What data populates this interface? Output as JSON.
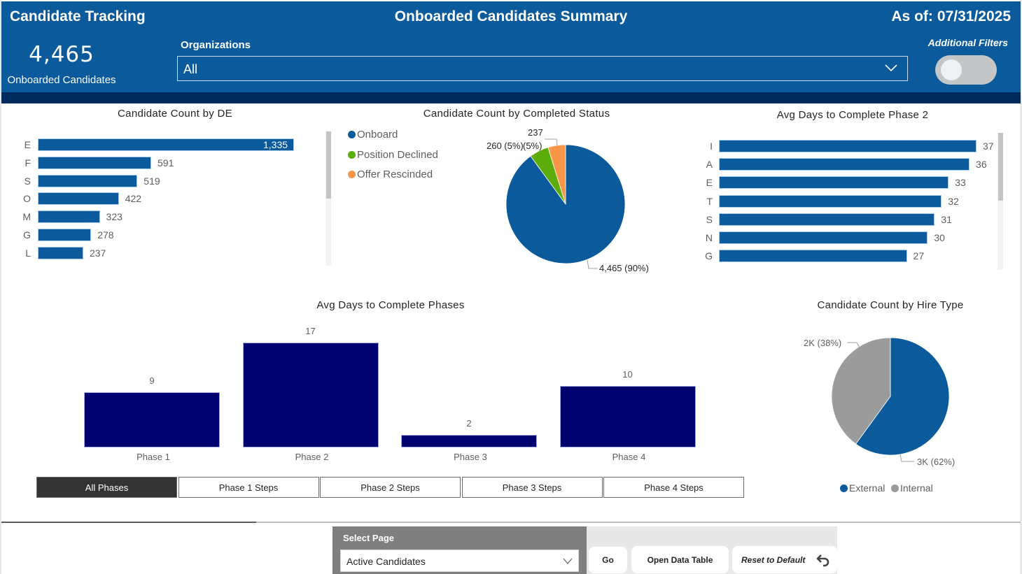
{
  "header": {
    "app_title": "Candidate Tracking",
    "page_title": "Onboarded Candidates Summary",
    "as_of_label": "As of:",
    "as_of_date": "07/31/2025",
    "kpi_value": "4,465",
    "kpi_label": "Onboarded Candidates",
    "organizations_label": "Organizations",
    "organizations_value": "All",
    "additional_filters_label": "Additional Filters",
    "additional_filters_on": false
  },
  "colors": {
    "header_bg": "#0a5a9c",
    "header_band": "#002b5c",
    "primary_bar": "#0a5a9c",
    "column_bar": "#000070",
    "onboard": "#0a5a9c",
    "position_declined": "#5cad0a",
    "offer_rescinded": "#f79646",
    "external": "#0a5a9c",
    "internal": "#9b9b9b"
  },
  "chart_data": [
    {
      "id": "de_count",
      "type": "bar",
      "orientation": "horizontal",
      "title": "Candidate Count by DE",
      "categories": [
        "E",
        "F",
        "S",
        "O",
        "M",
        "G",
        "L"
      ],
      "values": [
        1335,
        591,
        519,
        422,
        323,
        278,
        237
      ],
      "labels": [
        "1,335",
        "591",
        "519",
        "422",
        "323",
        "278",
        "237"
      ],
      "scrollable": true,
      "xlim": [
        0,
        1335
      ]
    },
    {
      "id": "completed_status",
      "type": "pie",
      "title": "Candidate Count by Completed Status",
      "categories": [
        "Onboard",
        "Position Declined",
        "Offer Rescinded"
      ],
      "values": [
        4465,
        260,
        237
      ],
      "percents": [
        90,
        5,
        5
      ],
      "labels": [
        "4,465 (90%)",
        "260 (5%)",
        "237 (5%)"
      ],
      "legend_position": "top-left"
    },
    {
      "id": "phase2_days",
      "type": "bar",
      "orientation": "horizontal",
      "title": "Avg Days to Complete Phase 2",
      "categories": [
        "I",
        "A",
        "E",
        "T",
        "S",
        "N",
        "G"
      ],
      "values": [
        37,
        36,
        33,
        32,
        31,
        30,
        27
      ],
      "labels": [
        "37",
        "36",
        "33",
        "32",
        "31",
        "30",
        "27"
      ],
      "scrollable": true,
      "xlim": [
        0,
        37
      ]
    },
    {
      "id": "phases_days",
      "type": "bar",
      "orientation": "vertical",
      "title": "Avg Days to Complete Phases",
      "categories": [
        "Phase 1",
        "Phase 2",
        "Phase 3",
        "Phase 4"
      ],
      "values": [
        9,
        17,
        2,
        10
      ],
      "labels": [
        "9",
        "17",
        "2",
        "10"
      ],
      "ylim": [
        0,
        17
      ]
    },
    {
      "id": "hire_type",
      "type": "pie",
      "title": "Candidate Count by Hire Type",
      "categories": [
        "External",
        "Internal"
      ],
      "values": [
        3000,
        2000
      ],
      "percents": [
        62,
        38
      ],
      "labels": [
        "3K (62%)",
        "2K (38%)"
      ],
      "legend_position": "bottom"
    }
  ],
  "phase_buttons": [
    {
      "label": "All Phases",
      "active": true
    },
    {
      "label": "Phase 1 Steps",
      "active": false
    },
    {
      "label": "Phase 2 Steps",
      "active": false
    },
    {
      "label": "Phase 3 Steps",
      "active": false
    },
    {
      "label": "Phase 4 Steps",
      "active": false
    }
  ],
  "nav": {
    "select_page_label": "Select Page",
    "select_page_value": "Active Candidates",
    "go_label": "Go",
    "open_data_table_label": "Open Data Table",
    "reset_label": "Reset to Default"
  }
}
